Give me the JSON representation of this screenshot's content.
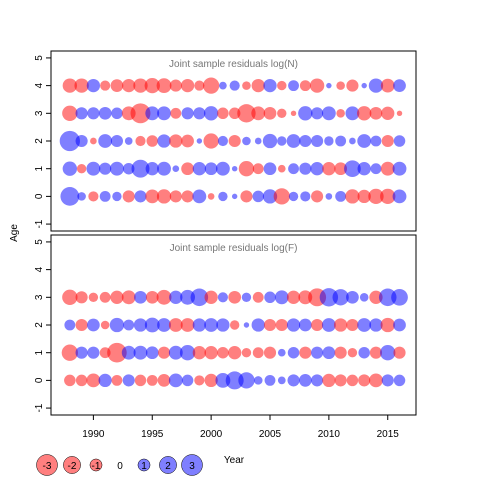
{
  "chart_data": {
    "type": "scatter",
    "subtype": "bubble-residuals",
    "shared_ylabel": "Age",
    "xlabel": "Year",
    "xlim": [
      1986.4,
      2017.4
    ],
    "xticks": [
      "1990",
      "1995",
      "2000",
      "2005",
      "2010",
      "2015"
    ],
    "colors": {
      "positive": "#0000ff",
      "negative": "#ff0000",
      "fill_alpha": 0.5
    },
    "panels": [
      {
        "title": "Joint sample residuals log(N)",
        "ylim": [
          -1.25,
          5.25
        ],
        "yticks": [
          "-1",
          "0",
          "1",
          "2",
          "3",
          "4",
          "5"
        ],
        "years": [
          1988,
          1989,
          1990,
          1991,
          1992,
          1993,
          1994,
          1995,
          1996,
          1997,
          1998,
          1999,
          2000,
          2001,
          2002,
          2003,
          2004,
          2005,
          2006,
          2007,
          2008,
          2009,
          2010,
          2011,
          2012,
          2013,
          2014,
          2015,
          2016
        ],
        "ages": [
          0,
          1,
          2,
          3,
          4
        ],
        "residuals": [
          [
            2.4,
            0.5,
            -0.7,
            0.8,
            0.6,
            -1.0,
            1.0,
            -1.3,
            -1.4,
            -1.0,
            -1.0,
            1.3,
            -0.3,
            0.6,
            0.2,
            -1.0,
            0.9,
            1.4,
            -1.8,
            0.6,
            0.7,
            -1.0,
            0.3,
            0.8,
            -1.4,
            -1.2,
            -1.6,
            -1.6,
            1.3
          ],
          [
            1.4,
            -0.6,
            1.3,
            1.0,
            1.3,
            0.9,
            2.2,
            1.2,
            1.3,
            0.3,
            -1.1,
            1.2,
            1.1,
            1.3,
            0.2,
            -1.6,
            -0.8,
            1.1,
            -0.4,
            0.8,
            1.0,
            1.2,
            -1.2,
            -1.1,
            1.9,
            1.2,
            0.8,
            -1.3,
            1.3
          ],
          [
            2.8,
            1.0,
            -0.3,
            1.3,
            1.0,
            0.4,
            -0.7,
            -0.9,
            1.2,
            -1.2,
            -1.1,
            0.2,
            -1.6,
            0.7,
            -1.0,
            0.5,
            0.3,
            1.4,
            0.6,
            1.3,
            1.0,
            1.0,
            0.6,
            0.8,
            0.3,
            1.3,
            0.8,
            -1.0,
            0.9
          ],
          [
            -1.6,
            1.0,
            1.0,
            1.1,
            0.9,
            -1.3,
            -2.7,
            1.3,
            1.3,
            -0.8,
            1.0,
            1.0,
            1.4,
            -0.9,
            -0.9,
            -2.3,
            -1.3,
            -1.1,
            -0.6,
            -0.2,
            1.4,
            1.0,
            1.3,
            -0.5,
            1.3,
            -1.4,
            -1.1,
            -1.2,
            -0.2
          ],
          [
            -1.4,
            -1.4,
            1.2,
            -0.7,
            -1.1,
            -1.2,
            -1.4,
            -1.6,
            -1.5,
            -1.0,
            -1.2,
            -0.7,
            -1.8,
            0.4,
            0.7,
            -0.5,
            -1.2,
            1.2,
            -0.6,
            0.8,
            -0.8,
            -1.4,
            0.2,
            -0.5,
            -1.0,
            0.2,
            1.4,
            -1.3,
            1.1
          ]
        ]
      },
      {
        "title": "Joint sample residuals log(F)",
        "ylim": [
          -1.25,
          5.25
        ],
        "yticks": [
          "-1",
          "0",
          "1",
          "2",
          "3",
          "4",
          "5"
        ],
        "years": [
          1988,
          1989,
          1990,
          1991,
          1992,
          1993,
          1994,
          1995,
          1996,
          1997,
          1998,
          1999,
          2000,
          2001,
          2002,
          2003,
          2004,
          2005,
          2006,
          2007,
          2008,
          2009,
          2010,
          2011,
          2012,
          2013,
          2014,
          2015,
          2016
        ],
        "ages": [
          0,
          1,
          2,
          3
        ],
        "residuals": [
          [
            -0.9,
            -0.9,
            -1.3,
            1.2,
            -0.8,
            1.0,
            -0.9,
            -0.8,
            -1.1,
            1.3,
            0.9,
            -0.7,
            -1.2,
            1.5,
            2.2,
            1.8,
            0.5,
            0.8,
            0.4,
            1.0,
            1.1,
            1.0,
            -1.2,
            -1.0,
            -0.9,
            -1.0,
            -1.3,
            1.0,
            0.9
          ],
          [
            -1.8,
            1.0,
            1.0,
            -0.8,
            -2.6,
            1.3,
            1.3,
            1.1,
            -1.0,
            1.3,
            1.6,
            -1.2,
            -1.2,
            -0.9,
            -1.2,
            -0.6,
            -0.8,
            -1.0,
            0.4,
            0.9,
            -1.0,
            1.0,
            1.1,
            -1.0,
            -0.6,
            0.9,
            -1.0,
            1.6,
            -1.0
          ],
          [
            0.8,
            -1.0,
            1.1,
            -0.5,
            1.4,
            0.8,
            1.2,
            1.5,
            1.3,
            -1.3,
            -1.3,
            1.2,
            1.3,
            1.2,
            -0.6,
            0.2,
            1.2,
            -1.0,
            -1.0,
            1.2,
            1.1,
            -1.0,
            1.3,
            -1.2,
            -1.0,
            1.3,
            1.2,
            -1.4,
            1.1
          ],
          [
            -1.6,
            -1.0,
            -0.6,
            -0.8,
            -1.2,
            -1.3,
            1.1,
            -1.1,
            -1.5,
            1.2,
            1.5,
            2.1,
            -1.2,
            0.7,
            -1.1,
            0.6,
            -0.8,
            0.9,
            1.3,
            -1.2,
            -1.3,
            -2.2,
            2.3,
            1.8,
            1.1,
            0.5,
            -1.2,
            2.1,
            1.9
          ]
        ]
      }
    ],
    "legend": {
      "labels": [
        "-3",
        "-2",
        "-1",
        "0",
        "1",
        "2",
        "3"
      ],
      "values": [
        -3,
        -2,
        -1,
        0,
        1,
        2,
        3
      ]
    }
  }
}
